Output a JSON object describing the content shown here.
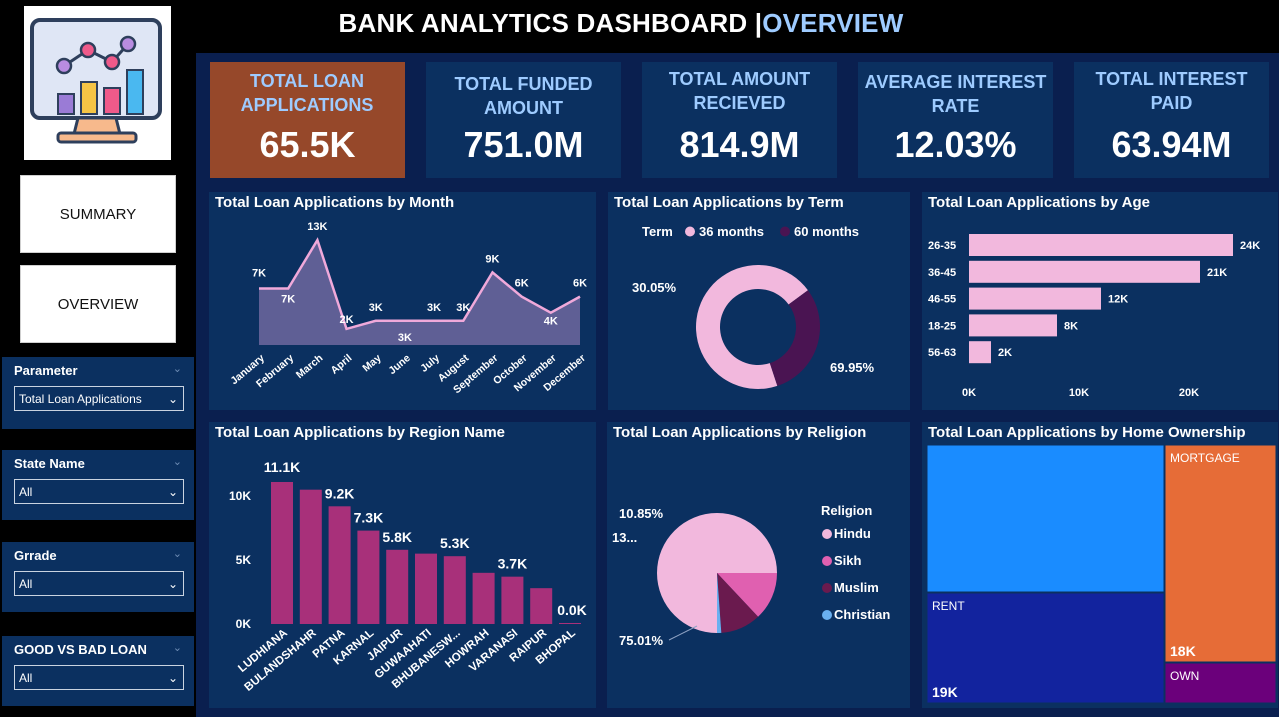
{
  "title": {
    "main": "BANK ANALYTICS DASHBOARD |",
    "accent": "OVERVIEW"
  },
  "logo": {
    "icon": "chart-monitor-icon"
  },
  "nav": {
    "summary": "SUMMARY",
    "overview": "OVERVIEW"
  },
  "filters": [
    {
      "label": "Parameter",
      "value": "Total Loan Applications"
    },
    {
      "label": "State Name",
      "value": "All"
    },
    {
      "label": "Grrade",
      "value": "All"
    },
    {
      "label": "GOOD VS BAD LOAN",
      "value": "All"
    }
  ],
  "kpis": [
    {
      "label": "TOTAL LOAN APPLICATIONS",
      "value": "65.5K"
    },
    {
      "label": "TOTAL FUNDED AMOUNT",
      "value": "751.0M"
    },
    {
      "label": "TOTAL AMOUNT RECIEVED",
      "value": "814.9M"
    },
    {
      "label": "AVERAGE INTEREST RATE",
      "value": "12.03%"
    },
    {
      "label": "TOTAL INTEREST PAID",
      "value": "63.94M"
    }
  ],
  "chart_data": [
    {
      "type": "area",
      "title": "Total Loan Applications by Month",
      "categories": [
        "January",
        "February",
        "March",
        "April",
        "May",
        "June",
        "July",
        "August",
        "September",
        "October",
        "November",
        "December"
      ],
      "values": [
        7,
        7,
        13,
        2,
        3,
        3,
        3,
        3,
        9,
        6,
        4,
        6
      ],
      "data_labels": [
        "7K",
        "7K",
        "13K",
        "2K",
        "3K",
        "3K",
        "3K",
        "3K",
        "9K",
        "6K",
        "4K",
        "6K"
      ],
      "colors": {
        "fill": "#5f5f95",
        "line": "#f0a9da"
      }
    },
    {
      "type": "pie",
      "title": "Total Loan Applications by Term",
      "legend_title": "Term",
      "series": [
        {
          "name": "36 months",
          "value": 69.95,
          "label": "69.95%",
          "color": "#f2b8dd"
        },
        {
          "name": "60 months",
          "value": 30.05,
          "label": "30.05%",
          "color": "#4a1452"
        }
      ]
    },
    {
      "type": "bar",
      "title": "Total Loan Applications by Age",
      "categories": [
        "26-35",
        "36-45",
        "46-55",
        "18-25",
        "56-63"
      ],
      "values": [
        24,
        21,
        12,
        8,
        2
      ],
      "data_labels": [
        "24K",
        "21K",
        "12K",
        "8K",
        "2K"
      ],
      "ticks": [
        "0K",
        "10K",
        "20K"
      ],
      "color": "#f2b8dd"
    },
    {
      "type": "bar",
      "title": "Total Loan Applications by Region Name",
      "categories": [
        "LUDHIANA",
        "BULANDSHAHR",
        "PATNA",
        "KARNAL",
        "JAIPUR",
        "GUWAAHATI",
        "BHUBANESW...",
        "HOWRAH",
        "VARANASI",
        "RAIPUR",
        "BHOPAL"
      ],
      "values": [
        11.1,
        10.5,
        9.2,
        7.3,
        5.8,
        5.5,
        5.3,
        4.0,
        3.7,
        2.8,
        0.0
      ],
      "data_labels": [
        "11.1K",
        "",
        "9.2K",
        "7.3K",
        "5.8K",
        "",
        "5.3K",
        "",
        "3.7K",
        "",
        "0.0K"
      ],
      "ticks": [
        "0K",
        "5K",
        "10K"
      ],
      "color": "#a8307a"
    },
    {
      "type": "pie",
      "title": "Total Loan Applications by Religion",
      "legend_title": "Religion",
      "series": [
        {
          "name": "Hindu",
          "value": 75.01,
          "label": "75.01%",
          "color": "#f2b8dd"
        },
        {
          "name": "Sikh",
          "value": 13.0,
          "label": "13...",
          "color": "#e060b0"
        },
        {
          "name": "Muslim",
          "value": 10.85,
          "label": "10.85%",
          "color": "#6a1a4e"
        },
        {
          "name": "Christian",
          "value": 1.14,
          "label": "",
          "color": "#6ab0f0"
        }
      ]
    },
    {
      "type": "treemap",
      "title": "Total Loan Applications by Home Ownership",
      "items": [
        {
          "name": "",
          "value": "",
          "color": "#1a8cff"
        },
        {
          "name": "MORTGAGE",
          "value": "18K",
          "color": "#e66c37"
        },
        {
          "name": "RENT",
          "value": "19K",
          "color": "#12239e"
        },
        {
          "name": "OWN",
          "value": "",
          "color": "#6b007b"
        }
      ]
    }
  ]
}
